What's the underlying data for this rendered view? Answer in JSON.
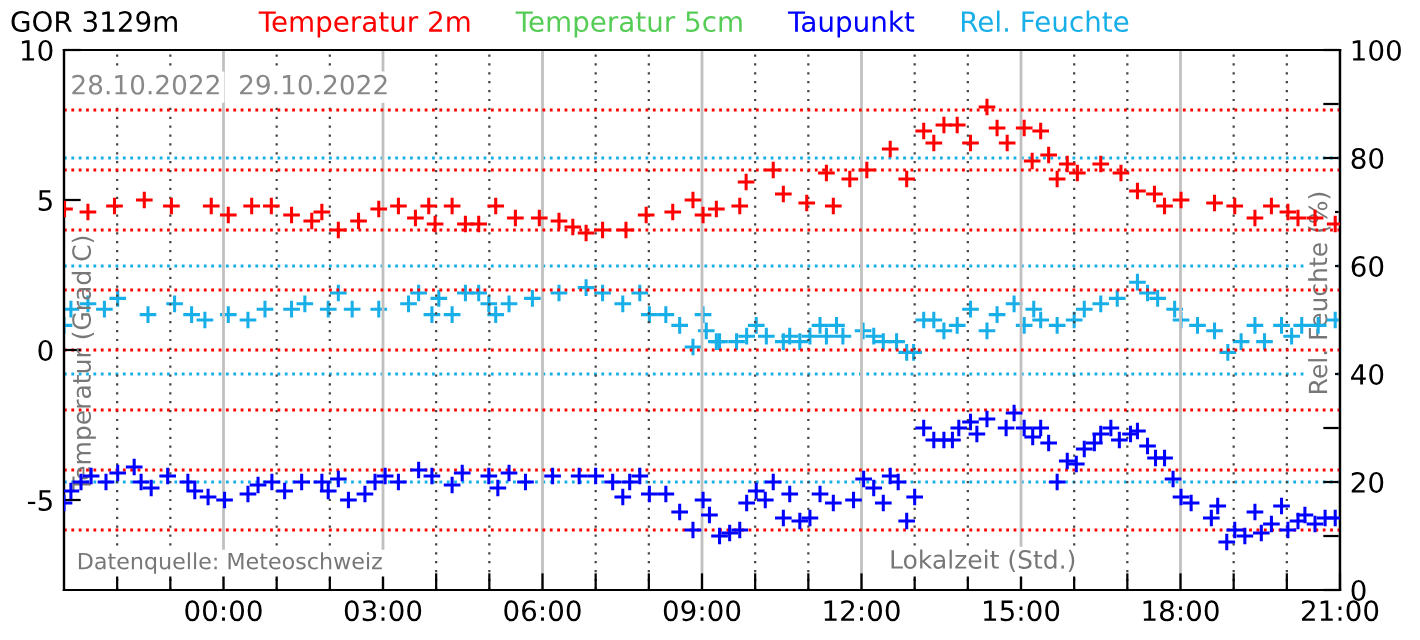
{
  "chart_data": {
    "type": "scatter",
    "title": "GOR 3129m",
    "xlabel": "Lokalzeit (Std.)",
    "ylabel": "Temperatur (Grad C)",
    "y2label": "Rel. Feuchte (%)",
    "annotations": [
      "28.10.2022",
      "29.10.2022",
      "Datenquelle: Meteoschweiz"
    ],
    "xlim": [
      -3,
      21
    ],
    "xticks": [
      {
        "value": -2,
        "label": null
      },
      {
        "value": -1,
        "label": null
      },
      {
        "value": 0,
        "label": "00:00"
      },
      {
        "value": 1,
        "label": null
      },
      {
        "value": 2,
        "label": null
      },
      {
        "value": 3,
        "label": "03:00"
      },
      {
        "value": 4,
        "label": null
      },
      {
        "value": 5,
        "label": null
      },
      {
        "value": 6,
        "label": "06:00"
      },
      {
        "value": 7,
        "label": null
      },
      {
        "value": 8,
        "label": null
      },
      {
        "value": 9,
        "label": "09:00"
      },
      {
        "value": 10,
        "label": null
      },
      {
        "value": 11,
        "label": null
      },
      {
        "value": 12,
        "label": "12:00"
      },
      {
        "value": 13,
        "label": null
      },
      {
        "value": 14,
        "label": null
      },
      {
        "value": 15,
        "label": "15:00"
      },
      {
        "value": 16,
        "label": null
      },
      {
        "value": 17,
        "label": null
      },
      {
        "value": 18,
        "label": "18:00"
      },
      {
        "value": 19,
        "label": null
      },
      {
        "value": 20,
        "label": null
      },
      {
        "value": 21,
        "label": "21:00"
      }
    ],
    "ylim": [
      -8,
      10
    ],
    "yticks": [
      -5,
      0,
      5,
      10
    ],
    "y2lim": [
      0,
      100
    ],
    "y2ticks": [
      0,
      {
        "value": 10,
        "label": null
      },
      20,
      {
        "value": 30,
        "label": null
      },
      40,
      {
        "value": 50,
        "label": null
      },
      60,
      {
        "value": 70,
        "label": null
      },
      80,
      {
        "value": 90,
        "label": null
      },
      100
    ],
    "grid": "x",
    "legend": "top",
    "marker": "cross",
    "ref_lines": [
      {
        "axis": "y",
        "value": -6,
        "color": "#ff0000",
        "line_style": "dotted"
      },
      {
        "axis": "y",
        "value": -4,
        "color": "#ff0000",
        "line_style": "dotted"
      },
      {
        "axis": "y",
        "value": -2,
        "color": "#ff0000",
        "line_style": "dotted"
      },
      {
        "axis": "y",
        "value": 0,
        "color": "#ff0000",
        "line_style": "dotted"
      },
      {
        "axis": "y",
        "value": 2,
        "color": "#ff0000",
        "line_style": "dotted"
      },
      {
        "axis": "y",
        "value": 4,
        "color": "#ff0000",
        "line_style": "dotted"
      },
      {
        "axis": "y",
        "value": 6,
        "color": "#ff0000",
        "line_style": "dotted"
      },
      {
        "axis": "y",
        "value": 8,
        "color": "#ff0000",
        "line_style": "dotted"
      },
      {
        "axis": "y2",
        "value": 20,
        "color": "#18aee8",
        "line_style": "dotted"
      },
      {
        "axis": "y2",
        "value": 40,
        "color": "#18aee8",
        "line_style": "dotted"
      },
      {
        "axis": "y2",
        "value": 60,
        "color": "#18aee8",
        "line_style": "dotted"
      },
      {
        "axis": "y2",
        "value": 80,
        "color": "#18aee8",
        "line_style": "dotted"
      }
    ],
    "series": [
      {
        "name": "Temperatur 2m",
        "color": "#ff0000",
        "x": [
          -2.99,
          -2.55,
          -2.05,
          -1.49,
          -0.98,
          -0.23,
          0.09,
          0.53,
          0.9,
          1.28,
          1.66,
          1.85,
          2.16,
          2.54,
          2.92,
          3.29,
          3.61,
          3.86,
          3.98,
          4.3,
          4.55,
          4.8,
          5.12,
          5.49,
          5.94,
          6.31,
          6.57,
          6.82,
          7.13,
          7.57,
          7.95,
          8.45,
          8.83,
          9.02,
          9.27,
          9.71,
          9.83,
          10.34,
          10.53,
          10.97,
          11.34,
          11.47,
          11.78,
          12.1,
          12.54,
          12.85,
          13.17,
          13.36,
          13.55,
          13.8,
          14.05,
          14.36,
          14.55,
          14.74,
          15.06,
          15.21,
          15.37,
          15.52,
          15.68,
          15.87,
          16.06,
          16.5,
          16.88,
          17.19,
          17.51,
          17.7,
          18.01,
          18.64,
          19.02,
          19.4,
          19.71,
          20.02,
          20.21,
          20.53,
          20.91
        ],
        "values": [
          4.7,
          4.6,
          4.8,
          5.0,
          4.8,
          4.8,
          4.5,
          4.8,
          4.8,
          4.5,
          4.3,
          4.6,
          4.0,
          4.3,
          4.7,
          4.8,
          4.4,
          4.8,
          4.2,
          4.8,
          4.2,
          4.2,
          4.8,
          4.4,
          4.4,
          4.3,
          4.1,
          3.9,
          4.0,
          4.0,
          4.5,
          4.6,
          5.0,
          4.5,
          4.7,
          4.8,
          5.6,
          6.0,
          5.2,
          4.9,
          5.9,
          4.8,
          5.7,
          6.0,
          6.7,
          5.7,
          7.3,
          6.9,
          7.5,
          7.5,
          6.9,
          8.1,
          7.4,
          6.9,
          7.4,
          6.3,
          7.3,
          6.5,
          5.7,
          6.2,
          5.9,
          6.2,
          5.9,
          5.3,
          5.2,
          4.8,
          5.0,
          4.9,
          4.8,
          4.4,
          4.8,
          4.6,
          4.4,
          4.4,
          4.2
        ]
      },
      {
        "name": "Temperatur 5cm",
        "color": "#55cc55"
      },
      {
        "name": "Taupunkt",
        "color": "#0000ff",
        "x": [
          -3.0,
          -2.87,
          -2.68,
          -2.49,
          -2.21,
          -1.99,
          -1.68,
          -1.55,
          -1.36,
          -1.05,
          -0.67,
          -0.54,
          -0.29,
          0.02,
          0.46,
          0.65,
          0.91,
          1.15,
          1.47,
          1.85,
          1.97,
          2.16,
          2.35,
          2.66,
          2.85,
          3.04,
          3.29,
          3.67,
          3.92,
          4.3,
          4.49,
          4.99,
          5.16,
          5.37,
          5.68,
          6.19,
          6.69,
          7.0,
          7.32,
          7.51,
          7.64,
          7.83,
          8.01,
          8.32,
          8.58,
          8.83,
          9.02,
          9.14,
          9.33,
          9.52,
          9.71,
          9.84,
          10.02,
          10.19,
          10.34,
          10.53,
          10.65,
          10.84,
          11.03,
          11.22,
          11.47,
          11.85,
          12.04,
          12.23,
          12.41,
          12.54,
          12.69,
          12.85,
          13.0,
          13.17,
          13.36,
          13.55,
          13.71,
          13.83,
          14.05,
          14.17,
          14.36,
          14.72,
          14.87,
          15.06,
          15.22,
          15.37,
          15.52,
          15.68,
          15.87,
          16.04,
          16.19,
          16.38,
          16.5,
          16.69,
          16.85,
          17.06,
          17.19,
          17.38,
          17.53,
          17.7,
          17.86,
          18.01,
          18.2,
          18.58,
          18.7,
          18.87,
          19.02,
          19.21,
          19.4,
          19.52,
          19.71,
          19.9,
          20.02,
          20.21,
          20.34,
          20.53,
          20.72,
          20.91
        ],
        "values": [
          -5.1,
          -4.7,
          -4.4,
          -4.2,
          -4.4,
          -4.1,
          -3.9,
          -4.4,
          -4.6,
          -4.2,
          -4.4,
          -4.7,
          -4.9,
          -5.0,
          -4.8,
          -4.5,
          -4.4,
          -4.7,
          -4.4,
          -4.4,
          -4.7,
          -4.3,
          -5.0,
          -4.8,
          -4.4,
          -4.2,
          -4.4,
          -4.0,
          -4.2,
          -4.5,
          -4.1,
          -4.2,
          -4.6,
          -4.1,
          -4.4,
          -4.2,
          -4.2,
          -4.2,
          -4.4,
          -4.9,
          -4.4,
          -4.2,
          -4.8,
          -4.8,
          -5.4,
          -6.0,
          -5.0,
          -5.5,
          -6.2,
          -6.1,
          -6.0,
          -5.1,
          -4.7,
          -5.0,
          -4.4,
          -5.6,
          -4.8,
          -5.7,
          -5.6,
          -4.8,
          -5.1,
          -5.0,
          -4.3,
          -4.6,
          -5.1,
          -4.2,
          -4.4,
          -5.7,
          -4.9,
          -2.6,
          -3.0,
          -3.0,
          -3.0,
          -2.6,
          -2.4,
          -2.8,
          -2.3,
          -2.6,
          -2.1,
          -2.6,
          -2.9,
          -2.6,
          -3.1,
          -4.4,
          -3.7,
          -3.8,
          -3.3,
          -3.1,
          -2.8,
          -2.6,
          -3.0,
          -2.8,
          -2.7,
          -3.2,
          -3.6,
          -3.6,
          -4.3,
          -4.9,
          -5.1,
          -5.6,
          -5.2,
          -6.4,
          -6.0,
          -6.2,
          -5.4,
          -6.1,
          -5.8,
          -5.2,
          -6.0,
          -5.7,
          -5.5,
          -5.8,
          -5.6,
          -5.6
        ]
      },
      {
        "name": "Rel. Feuchte",
        "color": "#18aee8",
        "axis": "y2",
        "x": [
          -3.0,
          -2.87,
          -2.55,
          -2.24,
          -1.99,
          -1.42,
          -0.92,
          -0.6,
          -0.35,
          0.09,
          0.46,
          0.78,
          1.28,
          1.53,
          1.97,
          2.16,
          2.42,
          2.92,
          3.48,
          3.67,
          3.92,
          4.05,
          4.3,
          4.55,
          4.8,
          4.99,
          5.12,
          5.37,
          5.81,
          6.31,
          6.82,
          7.13,
          7.51,
          7.83,
          8.01,
          8.32,
          8.58,
          8.83,
          9.02,
          9.08,
          9.27,
          9.33,
          9.65,
          9.84,
          10.02,
          10.21,
          10.53,
          10.65,
          10.84,
          11.03,
          11.22,
          11.34,
          11.53,
          11.65,
          12.03,
          12.23,
          12.41,
          12.66,
          12.85,
          12.98,
          13.17,
          13.36,
          13.55,
          13.8,
          14.05,
          14.36,
          14.55,
          14.87,
          15.06,
          15.24,
          15.37,
          15.68,
          16.0,
          16.19,
          16.5,
          16.81,
          17.19,
          17.38,
          17.57,
          17.89,
          18.01,
          18.32,
          18.64,
          18.89,
          19.14,
          19.4,
          19.58,
          19.9,
          20.09,
          20.28,
          20.59,
          20.91
        ],
        "values": [
          49,
          52,
          53,
          52,
          54,
          51,
          53,
          51,
          50,
          51,
          50,
          52,
          52,
          53,
          52,
          55,
          52,
          52,
          53,
          55,
          51,
          54,
          51,
          55,
          55,
          53,
          51,
          53,
          54,
          55,
          56,
          55,
          53,
          55,
          51,
          51,
          49,
          45,
          51,
          48,
          46,
          46,
          46,
          47,
          49,
          47,
          46,
          47,
          46,
          47,
          49,
          47,
          49,
          47,
          48,
          47,
          46,
          46,
          44,
          44,
          50,
          50,
          48,
          49,
          52,
          48,
          51,
          53,
          49,
          52,
          50,
          49,
          50,
          52,
          53,
          54,
          57,
          55,
          54,
          52,
          50,
          49,
          48,
          44,
          46,
          49,
          46,
          49,
          47,
          49,
          49,
          50
        ]
      }
    ]
  }
}
